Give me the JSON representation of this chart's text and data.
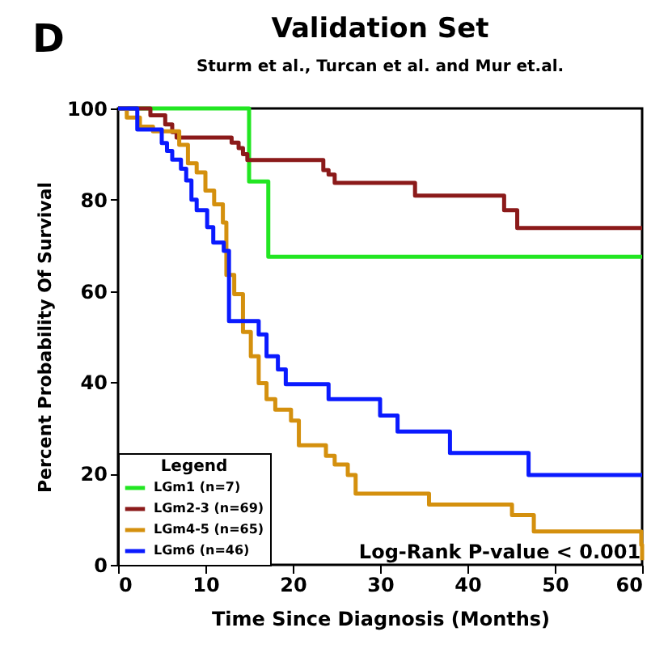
{
  "chart_data": {
    "type": "step",
    "title": "Validation Set",
    "subtitle": "Sturm et al., Turcan et al. and Mur et.al.",
    "xlabel": "Time Since Diagnosis (Months)",
    "ylabel": "Percent Probability Of Survival",
    "legend_title": "Legend",
    "legend": "bottom left",
    "annotations": [
      "D",
      "Log-Rank P-value < 0.001"
    ],
    "xlim": [
      0,
      60
    ],
    "xticks": [
      0,
      10,
      20,
      30,
      40,
      50,
      60
    ],
    "ylim": [
      0,
      100
    ],
    "yticks": [
      0,
      20,
      40,
      60,
      80,
      100
    ],
    "grid": false,
    "series": [
      {
        "name": "LGm1 (n=7)",
        "color": "#22e622",
        "x": [
          0,
          15,
          17.2,
          60
        ],
        "values": [
          100,
          84,
          67.5,
          67.5
        ]
      },
      {
        "name": "LGm2-3 (n=69)",
        "color": "#8b1a1a",
        "x": [
          0,
          3.7,
          5.4,
          6.2,
          6.7,
          13,
          13.8,
          14.3,
          14.8,
          23.5,
          24.1,
          24.8,
          34,
          44.2,
          45.7,
          60
        ],
        "values": [
          100,
          98.5,
          96.5,
          94.8,
          93.6,
          92.5,
          91.3,
          90,
          88.7,
          86.5,
          85.5,
          83.7,
          80.9,
          77.7,
          73.8,
          73.8
        ]
      },
      {
        "name": "LGm4-5 (n=65)",
        "color": "#d4900e",
        "x": [
          0,
          1,
          2.5,
          4,
          7,
          8,
          9,
          10,
          11,
          12,
          12.4,
          13.3,
          14.3,
          15.2,
          16.1,
          17,
          18,
          19.8,
          20.7,
          23.8,
          24.8,
          26.3,
          27.2,
          34.6,
          35.6,
          45.1,
          47.6,
          59.9,
          60
        ],
        "values": [
          100,
          98,
          96,
          95,
          92,
          88,
          86,
          82,
          79,
          75,
          63.5,
          59.3,
          51,
          45.7,
          39.8,
          36.3,
          34,
          31.6,
          26.2,
          23.9,
          22,
          19.7,
          15.6,
          15.6,
          13.2,
          10.9,
          7.3,
          4.4,
          1
        ]
      },
      {
        "name": "LGm6 (n=46)",
        "color": "#0a1aff",
        "x": [
          0,
          2.2,
          5,
          5.6,
          6.2,
          7.2,
          7.8,
          8.4,
          9,
          10.2,
          10.9,
          12.1,
          12.7,
          16.1,
          17,
          18.3,
          19.2,
          24.1,
          30,
          32,
          38,
          47,
          60
        ],
        "values": [
          100,
          95.4,
          92.4,
          90.7,
          88.8,
          86.8,
          84.2,
          80,
          77.7,
          74,
          70.6,
          68.8,
          53.4,
          50.5,
          45.7,
          42.8,
          39.6,
          36.3,
          32.7,
          29.2,
          24.5,
          19.7,
          19.7
        ]
      }
    ]
  }
}
